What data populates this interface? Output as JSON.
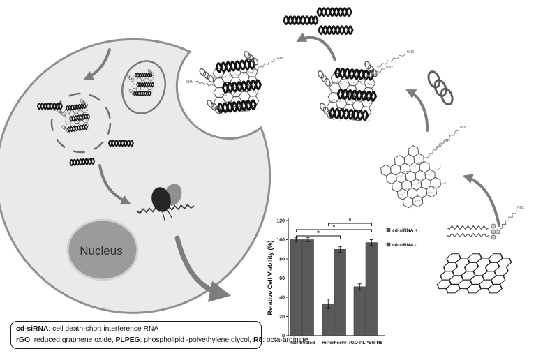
{
  "diagram": {
    "nucleus_label": "Nucleus",
    "nh2_label": "NH2",
    "hn2_label": "2HN",
    "cell_fill": "#eaeaea",
    "cell_stroke": "#8f8f8f",
    "nucleus_fill": "#9b9b9b",
    "arrow_color": "#7d7d7d"
  },
  "abbrev_box": {
    "line1": [
      {
        "text": "cd-siRNA",
        "bold": true
      },
      {
        "text": ": cell death-short interference RNA",
        "bold": false
      }
    ],
    "line2": [
      {
        "text": "rGO",
        "bold": true
      },
      {
        "text": ": reduced graphene oxide, ",
        "bold": false
      },
      {
        "text": "PLPEG",
        "bold": true
      },
      {
        "text": ": phospholipid -polyethylene glycol, ",
        "bold": false
      },
      {
        "text": "R8",
        "bold": true
      },
      {
        "text": ": octa-arginine",
        "bold": false
      }
    ]
  },
  "chart_data": {
    "type": "bar",
    "title": "",
    "xlabel": "",
    "ylabel": "Relative Cell Viability (%)",
    "ylim": [
      0,
      120
    ],
    "yticks": [
      0,
      20,
      40,
      60,
      80,
      100,
      120
    ],
    "grid": false,
    "legend_position": "right",
    "bar_color": "#595959",
    "categories": [
      "non-treated",
      "HiPerFect®",
      "rGO-PLPEG-R8"
    ],
    "series": [
      {
        "name": "cd-siRNA +",
        "values": [
          100,
          33,
          51
        ],
        "errors": [
          2,
          5,
          3
        ]
      },
      {
        "name": "cd-siRNA -",
        "values": [
          100,
          90,
          97
        ],
        "errors": [
          2,
          3,
          3
        ]
      }
    ],
    "significance": [
      {
        "groups": [
          0,
          1
        ],
        "label": "*",
        "level": 0
      },
      {
        "groups": [
          0,
          2
        ],
        "label": "*",
        "level": 1
      },
      {
        "groups": [
          1,
          2
        ],
        "label": "*",
        "level": 2
      }
    ]
  }
}
